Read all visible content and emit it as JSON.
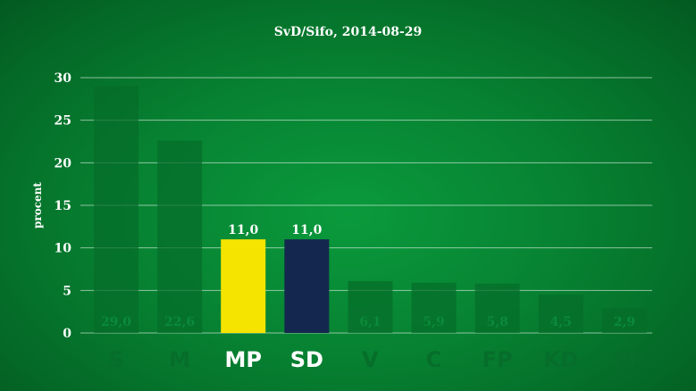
{
  "chart_data": {
    "type": "bar",
    "title": "SvD/Sifo, 2014-08-29",
    "xlabel": "",
    "ylabel": "procent",
    "ylim": [
      0,
      30
    ],
    "yticks": [
      "0",
      "5",
      "10",
      "15",
      "20",
      "25",
      "30"
    ],
    "grid": true,
    "categories": [
      "S",
      "M",
      "MP",
      "SD",
      "V",
      "C",
      "FP",
      "KD",
      "FI"
    ],
    "values": [
      29.0,
      22.6,
      11.0,
      11.0,
      6.1,
      5.9,
      5.8,
      4.5,
      2.9
    ],
    "value_labels": [
      "29,0",
      "22,6",
      "11,0",
      "11,0",
      "6,1",
      "5,9",
      "5,8",
      "4,5",
      "2,9"
    ],
    "highlighted": [
      false,
      false,
      true,
      true,
      false,
      false,
      false,
      false,
      false
    ],
    "colors": {
      "highlighted": [
        "",
        "",
        "#f5e400",
        "#14284f",
        "",
        "",
        "",
        "",
        ""
      ],
      "muted_bar": "#066e2a",
      "muted_text": "#0b8a3a",
      "highlight_text": "#ffffff"
    }
  }
}
